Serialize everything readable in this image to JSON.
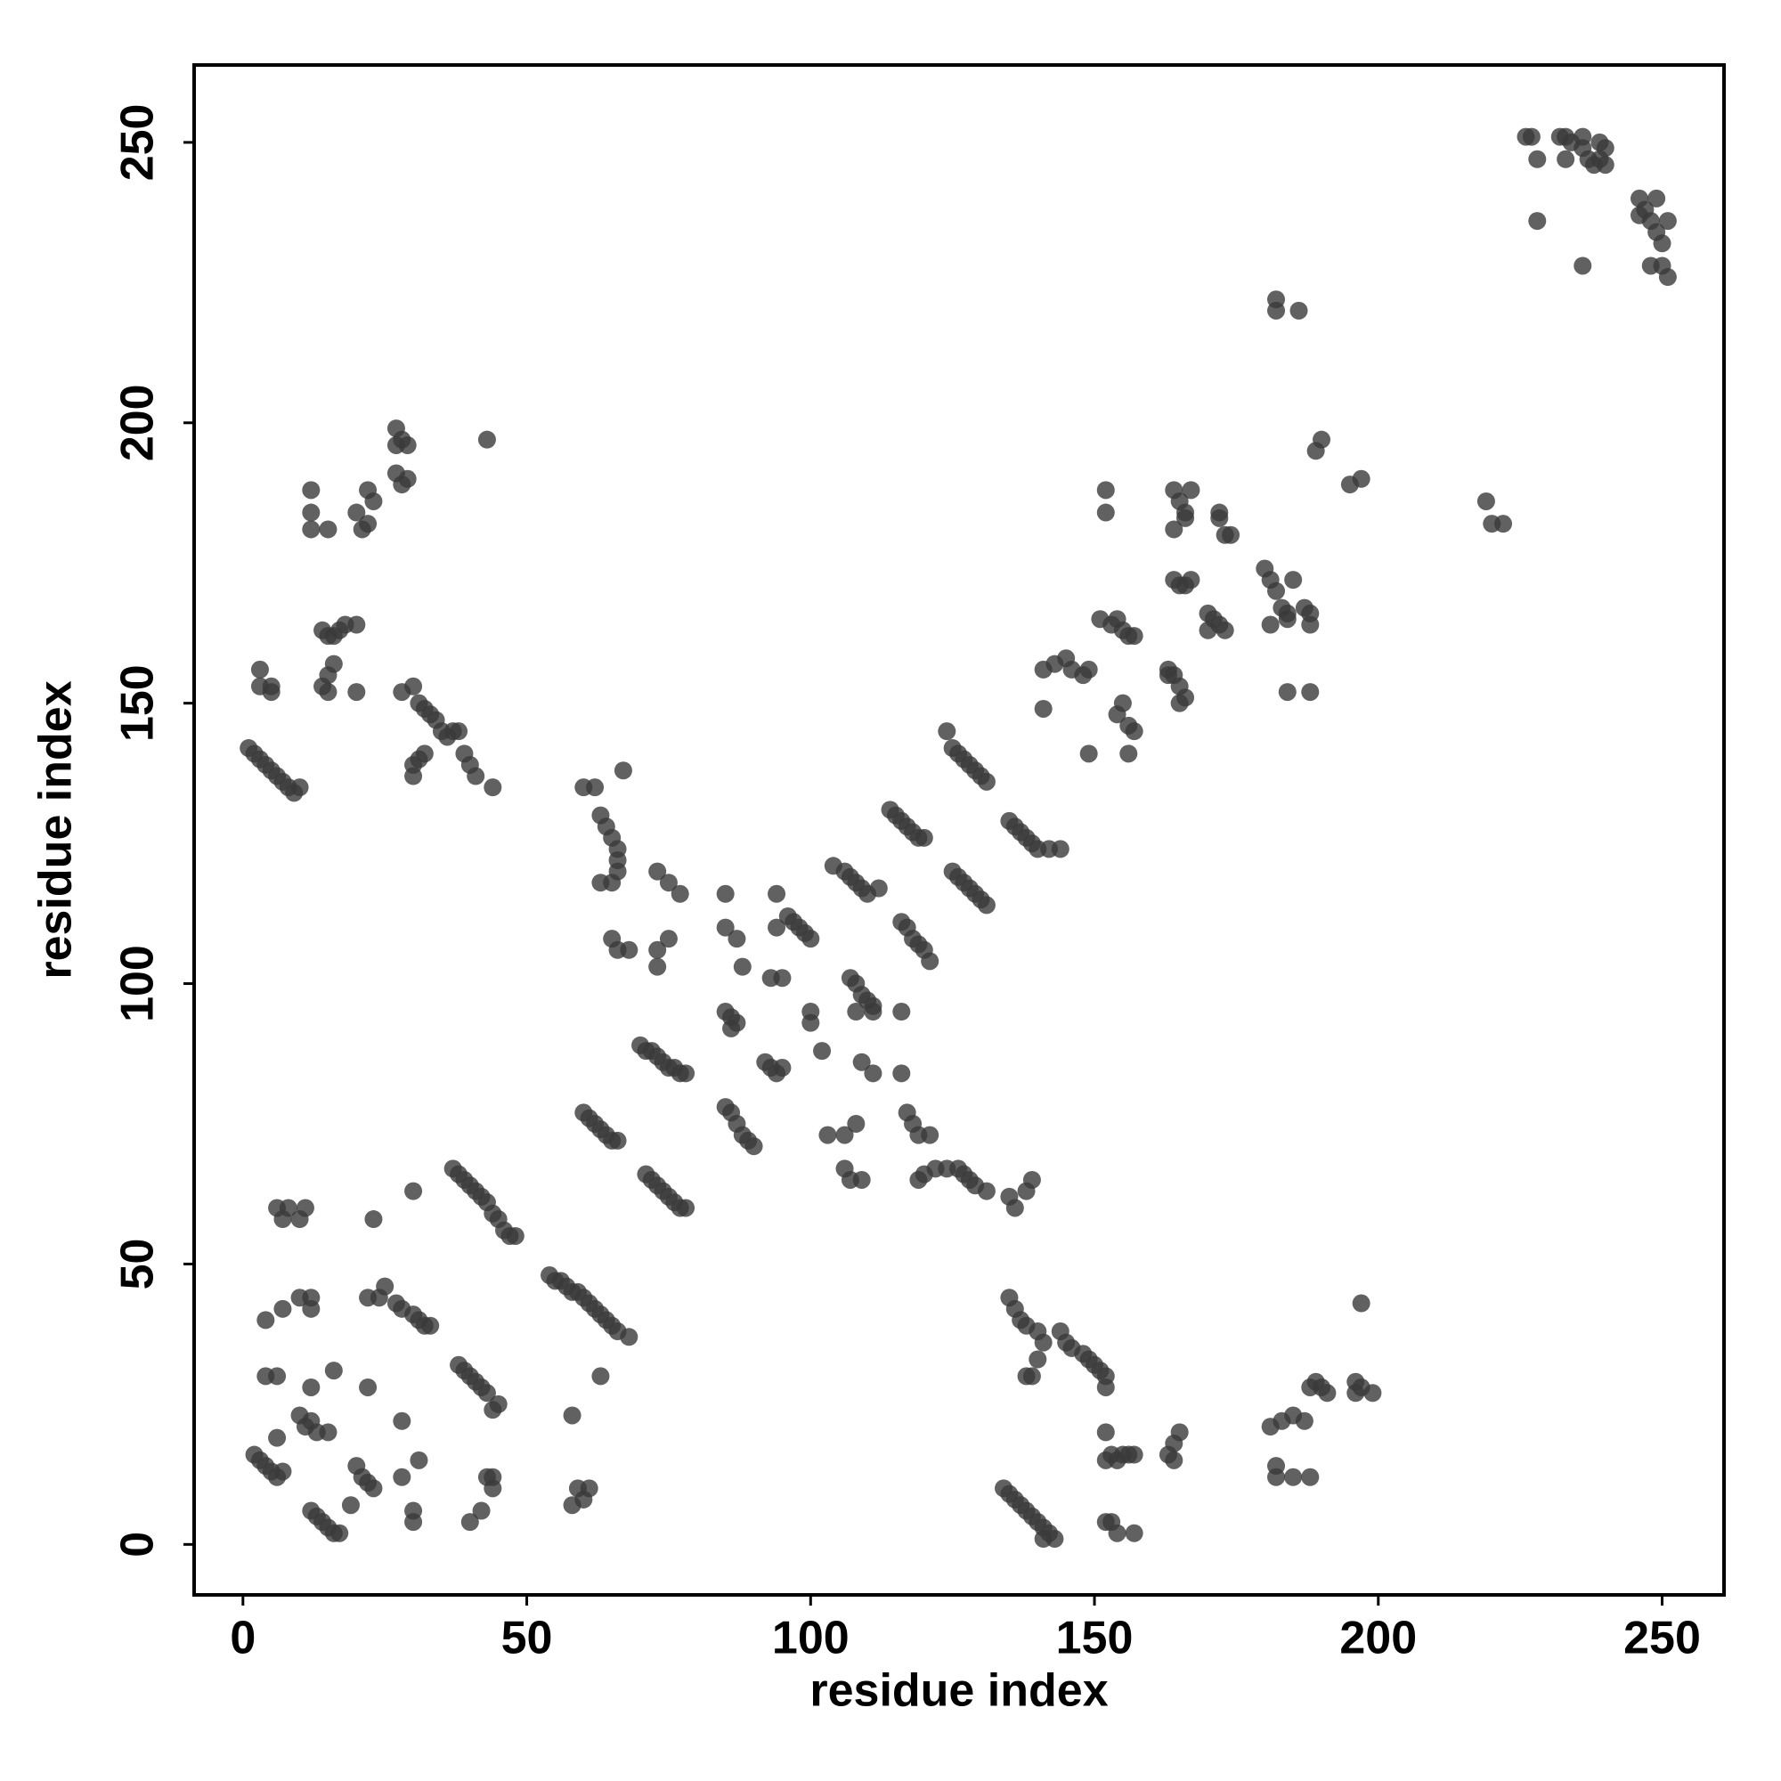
{
  "chart_data": {
    "type": "scatter",
    "x_label": "residue index",
    "y_label": "residue index",
    "x": [
      2,
      3,
      4,
      5,
      6,
      7,
      6,
      4,
      6,
      4,
      7,
      10,
      12,
      12,
      6,
      8,
      7,
      10,
      11,
      10,
      11,
      12,
      13,
      15,
      12,
      16,
      12,
      13,
      14,
      15,
      16,
      17,
      20,
      21,
      22,
      23,
      19,
      22,
      23,
      22,
      24,
      25,
      27,
      28,
      30,
      31,
      32,
      33,
      28,
      28,
      30,
      30,
      31,
      30,
      38,
      39,
      40,
      41,
      42,
      43,
      44,
      45,
      40,
      42,
      43,
      44,
      44,
      37,
      38,
      39,
      40,
      41,
      42,
      43,
      44,
      45,
      46,
      47,
      48,
      54,
      55,
      56,
      57,
      58,
      59,
      60,
      61,
      62,
      63,
      64,
      65,
      66,
      68,
      58,
      63,
      59,
      60,
      61,
      58,
      60,
      61,
      62,
      63,
      64,
      65,
      66,
      60,
      62,
      63,
      64,
      65,
      66,
      66,
      63,
      65,
      66,
      67,
      65,
      66,
      68,
      70,
      71,
      72,
      73,
      74,
      75,
      76,
      77,
      78,
      71,
      72,
      73,
      74,
      75,
      76,
      77,
      78,
      73,
      75,
      77,
      73,
      75,
      73,
      85,
      86,
      87,
      86,
      85,
      86,
      87,
      88,
      89,
      90,
      85,
      85,
      87,
      88,
      93,
      95,
      92,
      93,
      94,
      95,
      94,
      94,
      96,
      97,
      98,
      99,
      100,
      100,
      100,
      102,
      103,
      106,
      108,
      106,
      107,
      109,
      104,
      106,
      107,
      108,
      109,
      110,
      112,
      107,
      108,
      109,
      110,
      111,
      108,
      111,
      109,
      111,
      116,
      116,
      117,
      118,
      119,
      121,
      114,
      115,
      116,
      117,
      118,
      119,
      120,
      116,
      117,
      118,
      119,
      120,
      121,
      119,
      120,
      122,
      124,
      126,
      127,
      128,
      129,
      131,
      124,
      125,
      126,
      127,
      128,
      129,
      130,
      131,
      125,
      126,
      127,
      128,
      129,
      130,
      131,
      135,
      136,
      137,
      138,
      139,
      140,
      142,
      144,
      135,
      136,
      138,
      139,
      141,
      135,
      136,
      137,
      138,
      140,
      141,
      140,
      138,
      139,
      134,
      135,
      136,
      137,
      138,
      139,
      140,
      141,
      142,
      143,
      141,
      144,
      145,
      146,
      148,
      149,
      150,
      151,
      152,
      152,
      141,
      143,
      145,
      146,
      148,
      149,
      149,
      152,
      152,
      153,
      154,
      155,
      156,
      157,
      152,
      153,
      154,
      157,
      152,
      152,
      151,
      153,
      154,
      155,
      156,
      157,
      154,
      155,
      156,
      157,
      156,
      163,
      164,
      165,
      166,
      165,
      163,
      163,
      164,
      165,
      164,
      164,
      165,
      166,
      167,
      164,
      166,
      164,
      165,
      166,
      167,
      170,
      171,
      172,
      173,
      170,
      172,
      173,
      174,
      172,
      180,
      181,
      182,
      183,
      184,
      185,
      181,
      184,
      184,
      188,
      181,
      183,
      185,
      187,
      182,
      182,
      185,
      188,
      188,
      189,
      190,
      191,
      187,
      188,
      188,
      182,
      182,
      186,
      189,
      190,
      195,
      197,
      196,
      197,
      199,
      196,
      197,
      219,
      220,
      222,
      226,
      227,
      228,
      228,
      232,
      233,
      234,
      233,
      236,
      236,
      237,
      238,
      236,
      239,
      240,
      240,
      239,
      246,
      247,
      248,
      249,
      250,
      250,
      251,
      251,
      249,
      248,
      246,
      1,
      2,
      3,
      4,
      5,
      6,
      7,
      8,
      9,
      10,
      3,
      3,
      5,
      5,
      12,
      12,
      12,
      15,
      14,
      15,
      16,
      17,
      18,
      20,
      14,
      15,
      16,
      20,
      15,
      20,
      21,
      22,
      23,
      22,
      27,
      27,
      28,
      29,
      27,
      28,
      29,
      28,
      30,
      31,
      32,
      33,
      34,
      35,
      36,
      37,
      38,
      39,
      40,
      41,
      44,
      30,
      30,
      31,
      32,
      43
    ],
    "values": [
      16,
      15,
      14,
      13,
      12,
      13,
      19,
      30,
      30,
      40,
      42,
      44,
      44,
      42,
      60,
      60,
      58,
      58,
      60,
      23,
      21,
      22,
      20,
      20,
      28,
      31,
      6,
      5,
      4,
      3,
      2,
      2,
      14,
      12,
      11,
      10,
      7,
      28,
      58,
      44,
      44,
      46,
      43,
      42,
      41,
      40,
      39,
      39,
      22,
      12,
      6,
      4,
      15,
      63,
      32,
      31,
      30,
      29,
      28,
      27,
      24,
      25,
      4,
      6,
      12,
      10,
      12,
      67,
      66,
      65,
      64,
      63,
      62,
      61,
      59,
      58,
      56,
      55,
      55,
      48,
      47,
      47,
      46,
      45,
      45,
      44,
      43,
      42,
      41,
      40,
      39,
      38,
      37,
      23,
      30,
      10,
      8,
      10,
      7,
      77,
      76,
      75,
      74,
      73,
      72,
      72,
      135,
      135,
      130,
      128,
      126,
      124,
      120,
      118,
      118,
      122,
      138,
      108,
      106,
      106,
      89,
      88,
      88,
      87,
      86,
      85,
      85,
      84,
      84,
      66,
      65,
      64,
      63,
      62,
      61,
      60,
      60,
      120,
      118,
      116,
      106,
      108,
      103,
      95,
      94,
      93,
      92,
      78,
      77,
      75,
      73,
      72,
      71,
      116,
      110,
      108,
      103,
      101,
      101,
      86,
      85,
      84,
      85,
      116,
      110,
      112,
      111,
      110,
      109,
      108,
      95,
      93,
      88,
      73,
      73,
      75,
      67,
      65,
      65,
      121,
      120,
      119,
      118,
      117,
      116,
      117,
      101,
      100,
      98,
      97,
      96,
      95,
      95,
      86,
      84,
      95,
      84,
      77,
      75,
      73,
      73,
      131,
      130,
      129,
      128,
      127,
      126,
      126,
      111,
      110,
      108,
      107,
      106,
      104,
      65,
      66,
      67,
      67,
      67,
      66,
      65,
      64,
      63,
      145,
      142,
      141,
      140,
      139,
      138,
      137,
      136,
      120,
      119,
      118,
      117,
      116,
      115,
      114,
      129,
      128,
      127,
      126,
      125,
      124,
      124,
      124,
      62,
      60,
      63,
      65,
      149,
      44,
      42,
      40,
      39,
      38,
      36,
      33,
      30,
      30,
      10,
      9,
      8,
      7,
      6,
      5,
      4,
      3,
      2,
      1,
      1,
      38,
      36,
      35,
      34,
      33,
      32,
      31,
      30,
      28,
      156,
      157,
      158,
      156,
      155,
      156,
      141,
      20,
      15,
      16,
      15,
      16,
      16,
      16,
      4,
      4,
      2,
      2,
      188,
      184,
      165,
      164,
      165,
      163,
      162,
      162,
      148,
      150,
      146,
      145,
      141,
      156,
      155,
      153,
      151,
      150,
      155,
      16,
      18,
      20,
      15,
      188,
      186,
      184,
      188,
      181,
      183,
      172,
      171,
      171,
      172,
      166,
      165,
      164,
      163,
      163,
      184,
      180,
      180,
      183,
      174,
      172,
      170,
      167,
      166,
      172,
      164,
      165,
      152,
      152,
      21,
      22,
      23,
      22,
      14,
      12,
      12,
      12,
      28,
      29,
      28,
      27,
      167,
      166,
      164,
      222,
      220,
      220,
      195,
      197,
      189,
      190,
      29,
      28,
      27,
      27,
      43,
      186,
      182,
      182,
      251,
      251,
      247,
      236,
      251,
      251,
      250,
      247,
      251,
      249,
      247,
      246,
      228,
      250,
      249,
      246,
      247,
      240,
      238,
      236,
      234,
      232,
      228,
      226,
      236,
      240,
      228,
      237,
      142,
      141,
      140,
      139,
      138,
      137,
      136,
      135,
      134,
      135,
      156,
      153,
      153,
      152,
      188,
      184,
      181,
      181,
      163,
      162,
      162,
      163,
      164,
      164,
      153,
      155,
      157,
      152,
      152,
      184,
      181,
      188,
      186,
      182,
      199,
      196,
      197,
      196,
      191,
      189,
      190,
      152,
      153,
      150,
      149,
      148,
      147,
      145,
      144,
      145,
      145,
      141,
      139,
      137,
      135,
      137,
      139,
      140,
      141,
      197
    ],
    "color": "#3a3a3a",
    "alpha": 0.8,
    "xlim": [
      -8.6,
      260.9
    ],
    "ylim": [
      -9,
      263.8
    ],
    "xticks": [
      0,
      50,
      100,
      150,
      200,
      250
    ],
    "yticks": [
      0,
      50,
      100,
      150,
      200,
      250
    ]
  }
}
